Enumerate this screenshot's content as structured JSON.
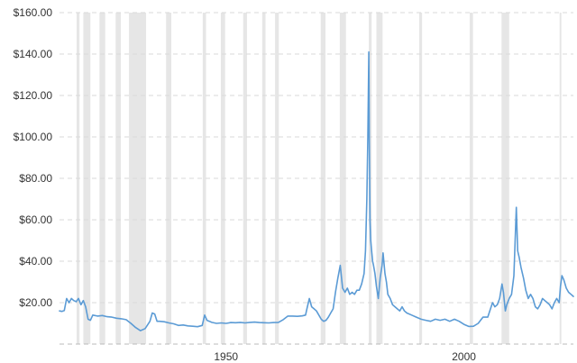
{
  "chart_data": {
    "type": "line",
    "title": "",
    "xlabel": "",
    "ylabel": "",
    "xlim": [
      1915,
      2023
    ],
    "ylim": [
      0,
      160
    ],
    "y_ticks": [
      20,
      40,
      60,
      80,
      100,
      120,
      140,
      160
    ],
    "y_tick_labels": [
      "$20.00",
      "$40.00",
      "$60.00",
      "$80.00",
      "$100.00",
      "$120.00",
      "$140.00",
      "$160.00"
    ],
    "x_ticks": [
      1950,
      2000
    ],
    "x_tick_labels": [
      "1950",
      "2000"
    ],
    "grid": true,
    "line_color": "#5b9bd5",
    "band_color": "#e6e6e6",
    "recession_periods": [
      [
        1918.6,
        1919.2
      ],
      [
        1920.0,
        1921.5
      ],
      [
        1923.4,
        1924.6
      ],
      [
        1926.8,
        1927.9
      ],
      [
        1929.6,
        1933.2
      ],
      [
        1937.4,
        1938.5
      ],
      [
        1945.1,
        1945.8
      ],
      [
        1948.9,
        1949.8
      ],
      [
        1953.6,
        1954.4
      ],
      [
        1957.6,
        1958.3
      ],
      [
        1960.3,
        1961.1
      ],
      [
        1969.9,
        1970.9
      ],
      [
        1973.9,
        1975.2
      ],
      [
        1980.0,
        1980.6
      ],
      [
        1981.6,
        1982.9
      ],
      [
        1990.6,
        1991.2
      ],
      [
        2001.2,
        2001.9
      ],
      [
        2007.9,
        2009.5
      ],
      [
        2020.1,
        2020.4
      ]
    ],
    "series": [
      {
        "x": [
          1915,
          1915.5,
          1916,
          1916.5,
          1917,
          1917.5,
          1918,
          1918.5,
          1919,
          1919.5,
          1920,
          1920.5,
          1921,
          1921.5,
          1922,
          1923,
          1924,
          1925,
          1926,
          1927,
          1928,
          1929,
          1930,
          1931,
          1932,
          1933,
          1934,
          1934.5,
          1935,
          1935.5,
          1936,
          1937,
          1938,
          1939,
          1940,
          1941,
          1942,
          1943,
          1944,
          1945,
          1945.5,
          1946,
          1946.5,
          1947,
          1948,
          1949,
          1950,
          1951,
          1952,
          1953,
          1954,
          1955,
          1956,
          1957,
          1958,
          1959,
          1960,
          1961,
          1962,
          1963,
          1964,
          1965,
          1966,
          1966.7,
          1967,
          1967.5,
          1968,
          1968.5,
          1969,
          1970,
          1970.5,
          1971,
          1971.5,
          1972,
          1972.5,
          1973,
          1973.5,
          1974,
          1974.5,
          1975,
          1975.5,
          1976,
          1976.5,
          1977,
          1977.5,
          1978,
          1978.5,
          1979,
          1979.3,
          1979.6,
          1979.8,
          1980.0,
          1980.1,
          1980.25,
          1980.4,
          1980.6,
          1980.8,
          1981,
          1981.3,
          1981.6,
          1982,
          1982.4,
          1982.8,
          1983,
          1983.4,
          1983.7,
          1984,
          1984.5,
          1985,
          1985.5,
          1986,
          1986.5,
          1987,
          1987.5,
          1988,
          1989,
          1990,
          1991,
          1992,
          1993,
          1994,
          1995,
          1996,
          1997,
          1998,
          1999,
          2000,
          2001,
          2002,
          2003,
          2004,
          2005,
          2006,
          2006.5,
          2007,
          2007.5,
          2008,
          2008.3,
          2008.7,
          2009,
          2009.5,
          2010,
          2010.5,
          2011,
          2011.3,
          2011.6,
          2012,
          2012.5,
          2013,
          2013.5,
          2014,
          2014.5,
          2015,
          2015.5,
          2016,
          2016.5,
          2017,
          2017.5,
          2018,
          2018.5,
          2019,
          2019.5,
          2020,
          2020.3,
          2020.6,
          2021,
          2021.5,
          2022,
          2022.5,
          2023
        ],
        "y": [
          16,
          15.8,
          16.2,
          22,
          20,
          22,
          21,
          20.5,
          22,
          19,
          21,
          18,
          12,
          11.5,
          14,
          13.5,
          13.8,
          13.2,
          13,
          12.5,
          12.2,
          11.8,
          10,
          8,
          6.5,
          7.5,
          11,
          15,
          14.5,
          11,
          11,
          10.8,
          10.2,
          9.8,
          9,
          9.2,
          8.8,
          8.6,
          8.4,
          9,
          14,
          11.5,
          11,
          10.5,
          10,
          10.2,
          10,
          10.4,
          10.3,
          10.5,
          10.2,
          10.5,
          10.6,
          10.4,
          10.3,
          10.2,
          10.4,
          10.5,
          11.8,
          13.5,
          13.5,
          13.4,
          13.6,
          14,
          17,
          22,
          18,
          17,
          16,
          12,
          11,
          11.5,
          13,
          15,
          17,
          25,
          32,
          38,
          27,
          25,
          27,
          24,
          25,
          24,
          26,
          26,
          29,
          34,
          45,
          70,
          100,
          141,
          100,
          60,
          50,
          45,
          40,
          38,
          34,
          28,
          22,
          32,
          38,
          44,
          34,
          30,
          24,
          22,
          19,
          18,
          17,
          16,
          18,
          16,
          15,
          14,
          13,
          12,
          11.5,
          11,
          12,
          11.5,
          12,
          11,
          12,
          11,
          9.5,
          8.5,
          8.6,
          10,
          13,
          13,
          20,
          18,
          19,
          22,
          29,
          25,
          16,
          19,
          22,
          24,
          33,
          66,
          45,
          42,
          37,
          32,
          26,
          22,
          24,
          22,
          18,
          17,
          19,
          22,
          21,
          20,
          19,
          17,
          20,
          22,
          20,
          28,
          33,
          31,
          27,
          25,
          24,
          23
        ]
      }
    ]
  }
}
